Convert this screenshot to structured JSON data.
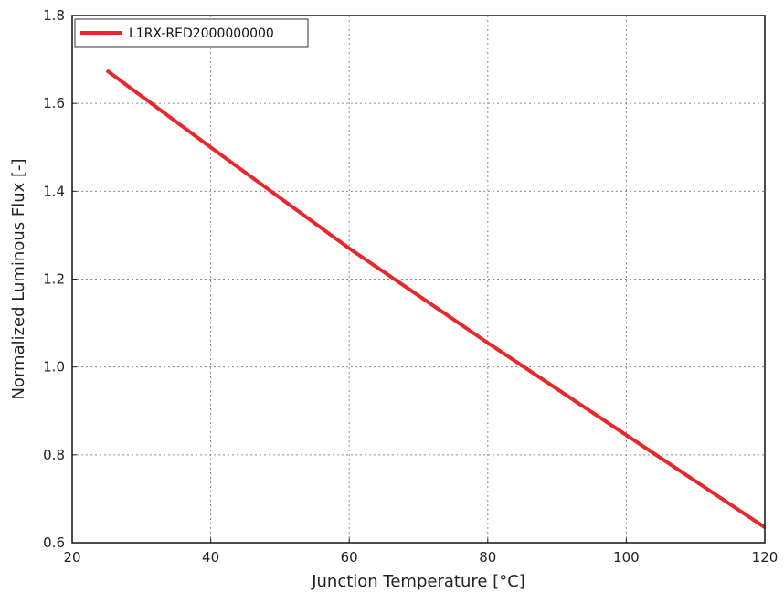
{
  "chart_data": {
    "type": "line",
    "xlabel": "Junction Temperature [°C]",
    "ylabel": "Normalized Luminous Flux [-]",
    "xlim": [
      20,
      120
    ],
    "ylim": [
      0.6,
      1.8
    ],
    "xticks": [
      20,
      40,
      60,
      80,
      100,
      120
    ],
    "yticks": [
      0.6,
      0.8,
      1.0,
      1.2,
      1.4,
      1.6,
      1.8
    ],
    "xtick_labels": [
      "20",
      "40",
      "60",
      "80",
      "100",
      "120"
    ],
    "ytick_labels": [
      "0.6",
      "0.8",
      "1.0",
      "1.2",
      "1.4",
      "1.6",
      "1.8"
    ],
    "grid": true,
    "legend_position": "top-left",
    "series": [
      {
        "name": "L1RX-RED2000000000",
        "color": "#e8262b",
        "x": [
          25,
          40,
          60,
          80,
          100,
          120
        ],
        "y": [
          1.675,
          1.5,
          1.27,
          1.055,
          0.845,
          0.635
        ]
      }
    ]
  }
}
